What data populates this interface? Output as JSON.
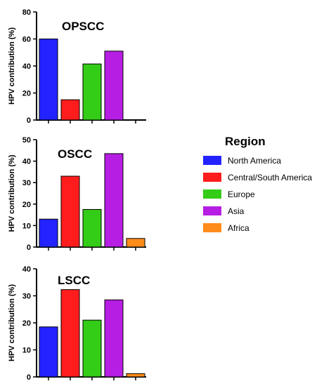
{
  "legend": {
    "title": "Region",
    "placement": "right"
  },
  "chart_data": [
    {
      "type": "bar",
      "title": "OPSCC",
      "ylabel": "HPV contribution (%)",
      "xlabel": "",
      "ylim": [
        0,
        80
      ],
      "yticks": [
        "0",
        "20",
        "40",
        "60",
        "80"
      ],
      "categories": [
        "North America",
        "Central/South America",
        "Europe",
        "Asia",
        "Africa"
      ],
      "values": [
        60,
        15,
        41.5,
        51,
        null
      ],
      "colors": [
        "#2323ff",
        "#ff1c1c",
        "#33cc17",
        "#b61ee3",
        "#ff8c1a"
      ]
    },
    {
      "type": "bar",
      "title": "OSCC",
      "ylabel": "HPV contribution (%)",
      "xlabel": "",
      "ylim": [
        0,
        50
      ],
      "yticks": [
        "0",
        "10",
        "20",
        "30",
        "40",
        "50"
      ],
      "categories": [
        "North America",
        "Central/South America",
        "Europe",
        "Asia",
        "Africa"
      ],
      "values": [
        13,
        33,
        17.5,
        43.5,
        4
      ],
      "colors": [
        "#2323ff",
        "#ff1c1c",
        "#33cc17",
        "#b61ee3",
        "#ff8c1a"
      ]
    },
    {
      "type": "bar",
      "title": "LSCC",
      "ylabel": "HPV contribution (%)",
      "xlabel": "",
      "ylim": [
        0,
        40
      ],
      "yticks": [
        "0",
        "10",
        "20",
        "30",
        "40"
      ],
      "categories": [
        "North America",
        "Central/South America",
        "Europe",
        "Asia",
        "Africa"
      ],
      "values": [
        18.5,
        32.3,
        21,
        28.5,
        1.2
      ],
      "colors": [
        "#2323ff",
        "#ff1c1c",
        "#33cc17",
        "#b61ee3",
        "#ff8c1a"
      ]
    }
  ]
}
